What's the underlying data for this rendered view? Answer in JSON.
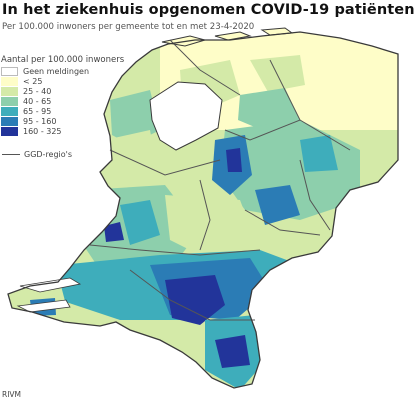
{
  "title": "In het ziekenhuis opgenomen COVID-19 patiënten",
  "subtitle": "Per 100.000 inwoners per gemeente tot en met 23-4-2020",
  "legend": {
    "title": "Aantal per 100.000 inwoners",
    "items": [
      {
        "label": "Geen meldingen",
        "color": "#ffffff"
      },
      {
        "label": "< 25",
        "color": "#fefdc8"
      },
      {
        "label": "25 - 40",
        "color": "#d4eaa8"
      },
      {
        "label": "40 - 65",
        "color": "#8dcfac"
      },
      {
        "label": "65 - 95",
        "color": "#3eadbb"
      },
      {
        "label": "95 - 160",
        "color": "#2b7cb5"
      },
      {
        "label": "160 - 325",
        "color": "#22349a"
      }
    ],
    "ggd_label": "GGD-regio's"
  },
  "source": "RIVM",
  "colors": {
    "sea": "#ffffff",
    "border": "#3a3a3a",
    "region_line": "#555555"
  }
}
